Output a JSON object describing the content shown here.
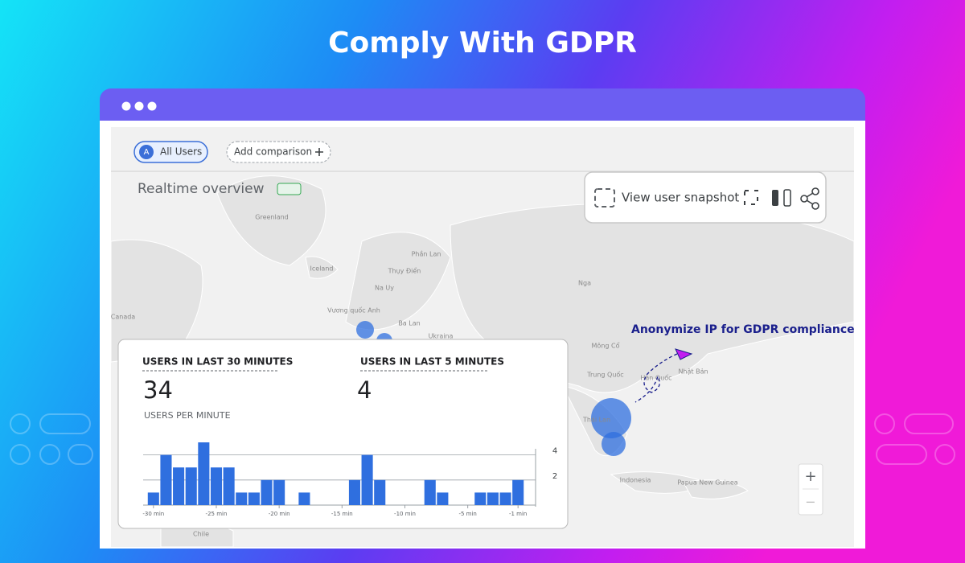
{
  "header": {
    "title": "Comply With GDPR"
  },
  "toolbar": {
    "segment": "All Users",
    "segment_badge": "A",
    "add_comparison": "Add comparison"
  },
  "overview_title": "Realtime overview",
  "snapshot": {
    "label": "View user snapshot"
  },
  "annotation": "Anonymize IP for GDPR compliance",
  "map_labels": [
    "Greenland",
    "Iceland",
    "Thụy Điển",
    "Phần Lan",
    "Na Uy",
    "Vương quốc Anh",
    "Ba Lan",
    "Ukraina",
    "Canada",
    "Nga",
    "Mông Cổ",
    "Trung Quốc",
    "Hàn Quốc",
    "Nhật Bản",
    "Thái Lan",
    "Indonesia",
    "Papua New Guinea",
    "Chile"
  ],
  "card": {
    "users_30_label": "USERS IN LAST 30 MINUTES",
    "users_30_value": 34,
    "users_5_label": "USERS IN LAST 5 MINUTES",
    "users_5_value": 4,
    "per_minute_label": "USERS PER MINUTE"
  },
  "zoom": {
    "in": "+",
    "out": "−"
  },
  "chart_data": {
    "type": "bar",
    "categories": [
      "-30 min",
      null,
      null,
      null,
      null,
      "-25 min",
      null,
      null,
      null,
      null,
      "-20 min",
      null,
      null,
      null,
      null,
      "-15 min",
      null,
      null,
      null,
      null,
      "-10 min",
      null,
      null,
      null,
      null,
      "-5 min",
      null,
      null,
      null,
      "-1 min"
    ],
    "values": [
      1,
      4,
      3,
      3,
      5,
      3,
      3,
      1,
      1,
      2,
      2,
      0,
      1,
      0,
      0,
      0,
      2,
      4,
      2,
      0,
      0,
      0,
      2,
      1,
      0,
      0,
      1,
      1,
      1,
      2
    ],
    "color": "#2f6fdf",
    "ylim": [
      0,
      5
    ],
    "yticks": [
      2,
      4
    ],
    "grid": true
  }
}
